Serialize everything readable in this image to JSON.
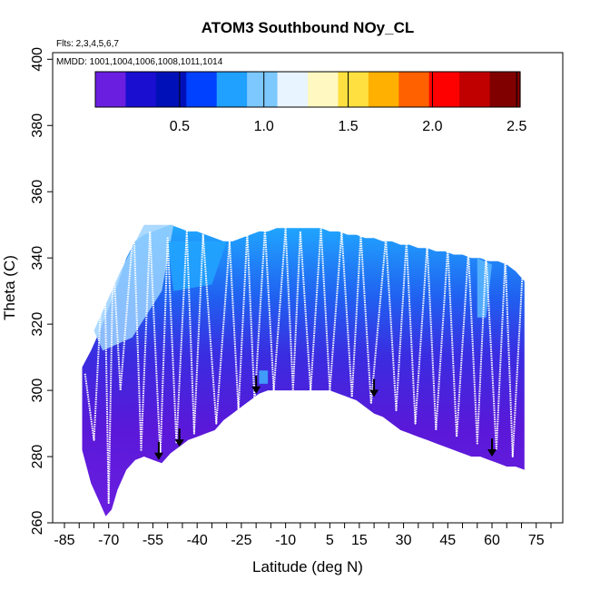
{
  "chart_data": {
    "type": "heatmap",
    "title": "ATOM3 Southbound NOy_CL",
    "note_flights": "Flts: 2,3,4,5,6,7",
    "note_dates": "MMDD: 1001,1004,1006,1008,1011,1014",
    "xlabel": "Latitude (deg N)",
    "ylabel": "Theta (C)",
    "xlim": [
      -89,
      84
    ],
    "ylim": [
      260,
      402
    ],
    "x_ticks": [
      -85,
      -70,
      -55,
      -40,
      -25,
      -10,
      5,
      15,
      30,
      45,
      60,
      75
    ],
    "x_tick_labels": [
      "-85",
      "-70",
      "-55",
      "-40",
      "-25",
      "-10",
      "5",
      "15",
      "30",
      "45",
      "60",
      "75"
    ],
    "y_ticks": [
      260,
      280,
      300,
      320,
      340,
      360,
      380,
      400
    ],
    "y_tick_labels": [
      "260",
      "280",
      "300",
      "320",
      "340",
      "360",
      "380",
      "400"
    ],
    "colorbar": {
      "range": [
        0,
        2.52
      ],
      "ticks": [
        0.5,
        1.0,
        1.5,
        2.0,
        2.5
      ],
      "tick_labels": [
        "0.5",
        "1.0",
        "1.5",
        "2.0",
        "2.5"
      ],
      "colors": [
        "#6a1fe0",
        "#1a0fd0",
        "#0010b8",
        "#0040ff",
        "#20a0ff",
        "#7cc8ff",
        "#e8f4ff",
        "#fff8c0",
        "#ffe040",
        "#ffb000",
        "#ff6000",
        "#ff0000",
        "#c00000",
        "#800000"
      ]
    },
    "surface_boundary": {
      "lat": [
        -79,
        -76,
        -73,
        -71,
        -69,
        -67,
        -64,
        -61,
        -58,
        -55,
        -52,
        -49,
        -46,
        -43,
        -40,
        -37,
        -34,
        -31,
        -28,
        -25,
        -22,
        -19,
        -16,
        -13,
        -10,
        -7,
        -4,
        -1,
        2,
        5,
        8,
        11,
        14,
        17,
        20,
        23,
        26,
        29,
        32,
        35,
        38,
        41,
        44,
        47,
        50,
        53,
        56,
        59,
        62,
        65,
        68,
        71
      ],
      "theta": [
        282,
        272,
        266,
        262,
        264,
        270,
        276,
        279,
        280,
        279,
        278,
        281,
        283,
        285,
        286,
        287,
        288,
        291,
        293,
        295,
        297,
        299,
        300,
        300,
        300,
        300,
        300,
        300,
        300,
        300,
        299,
        298,
        297,
        295,
        293,
        292,
        290,
        288,
        287,
        286,
        285,
        284,
        283,
        282,
        281,
        280,
        280,
        279,
        278,
        277,
        277,
        276
      ]
    },
    "top_boundary": {
      "lat": [
        -79,
        -76,
        -73,
        -70,
        -67,
        -64,
        -61,
        -58,
        -55,
        -52,
        -49,
        -46,
        -43,
        -40,
        -37,
        -34,
        -31,
        -28,
        -25,
        -22,
        -19,
        -16,
        -13,
        -10,
        -7,
        -4,
        -1,
        2,
        5,
        8,
        11,
        14,
        17,
        20,
        23,
        26,
        29,
        32,
        35,
        38,
        41,
        44,
        47,
        50,
        53,
        56,
        59,
        62,
        65,
        68,
        71
      ],
      "theta": [
        307,
        312,
        318,
        325,
        332,
        340,
        345,
        347,
        348,
        349,
        350,
        349,
        348,
        348,
        347,
        346,
        345,
        345,
        346,
        347,
        348,
        348,
        349,
        349,
        349,
        349,
        349,
        349,
        348,
        348,
        347,
        347,
        346,
        346,
        345,
        345,
        344,
        344,
        343,
        343,
        342,
        342,
        341,
        341,
        340,
        340,
        339,
        339,
        338,
        336,
        333
      ]
    },
    "flight_profile_marks": [
      {
        "lat": [
          -78,
          -75,
          -71.5,
          -70,
          -68.5,
          -66,
          -61.5,
          -59,
          -56,
          -52.5,
          -50,
          -47,
          -43.5,
          -41,
          -38,
          -33.5,
          -29,
          -26,
          -23,
          -20.5,
          -17,
          -14,
          -10,
          -7.5,
          -5,
          -1.5,
          2,
          5,
          9,
          12.5,
          15.5,
          19,
          24,
          27.5,
          31,
          34,
          38,
          41,
          45,
          48,
          52,
          55,
          58,
          61.5,
          64.5,
          67,
          70.5
        ]
      },
      {
        "theta": [
          305,
          285,
          345,
          266,
          340,
          300,
          350,
          282,
          348,
          280,
          346,
          284,
          348,
          287,
          347,
          290,
          345,
          294,
          348,
          296,
          349,
          300,
          349,
          300,
          348,
          300,
          349,
          300,
          348,
          298,
          347,
          296,
          346,
          294,
          345,
          290,
          344,
          288,
          343,
          286,
          342,
          284,
          341,
          282,
          340,
          280,
          338
        ]
      }
    ],
    "arrows": [
      {
        "lat": -53,
        "theta": 279
      },
      {
        "lat": -46,
        "theta": 283
      },
      {
        "lat": -20,
        "theta": 299
      },
      {
        "lat": 20,
        "theta": 298
      },
      {
        "lat": 60,
        "theta": 280
      }
    ]
  }
}
